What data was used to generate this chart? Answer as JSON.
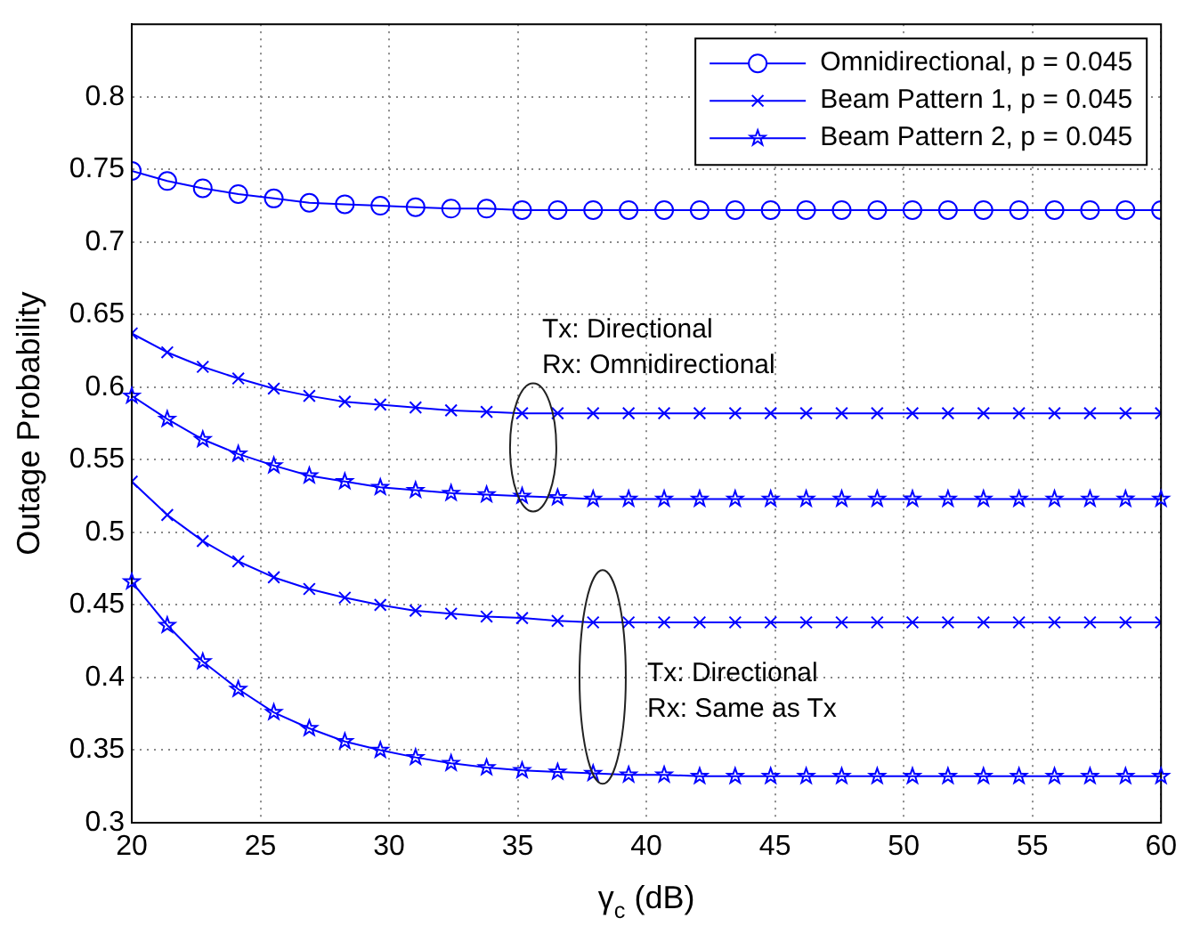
{
  "chart_data": {
    "type": "line",
    "xlabel": "γ$_{c}$ (dB)",
    "ylabel": "Outage Probability",
    "x": [
      20,
      21.38,
      22.76,
      24.14,
      25.52,
      26.9,
      28.28,
      29.66,
      31.03,
      32.41,
      33.79,
      35.17,
      36.55,
      37.93,
      39.31,
      40.69,
      42.07,
      43.45,
      44.83,
      46.21,
      47.59,
      48.97,
      50.34,
      51.72,
      53.1,
      54.48,
      55.86,
      57.24,
      58.62,
      60
    ],
    "series": [
      {
        "name": "Omnidirectional, p = 0.045",
        "color": "#0000ff",
        "marker": "circle",
        "values": [
          0.749,
          0.742,
          0.737,
          0.733,
          0.73,
          0.727,
          0.726,
          0.725,
          0.724,
          0.723,
          0.723,
          0.722,
          0.722,
          0.722,
          0.722,
          0.722,
          0.722,
          0.722,
          0.722,
          0.722,
          0.722,
          0.722,
          0.722,
          0.722,
          0.722,
          0.722,
          0.722,
          0.722,
          0.722,
          0.722
        ]
      },
      {
        "name": "Beam Pattern 1, p = 0.045",
        "color": "#0000ff",
        "marker": "cross",
        "values": [
          0.637,
          0.624,
          0.614,
          0.606,
          0.599,
          0.594,
          0.59,
          0.588,
          0.586,
          0.584,
          0.583,
          0.582,
          0.582,
          0.582,
          0.582,
          0.582,
          0.582,
          0.582,
          0.582,
          0.582,
          0.582,
          0.582,
          0.582,
          0.582,
          0.582,
          0.582,
          0.582,
          0.582,
          0.582,
          0.582
        ]
      },
      {
        "name": "Beam Pattern 2, p = 0.045",
        "color": "#0000ff",
        "marker": "star",
        "values": [
          0.594,
          0.578,
          0.564,
          0.554,
          0.546,
          0.539,
          0.535,
          0.531,
          0.529,
          0.527,
          0.526,
          0.525,
          0.524,
          0.523,
          0.523,
          0.523,
          0.523,
          0.523,
          0.523,
          0.523,
          0.523,
          0.523,
          0.523,
          0.523,
          0.523,
          0.523,
          0.523,
          0.523,
          0.523,
          0.523
        ]
      },
      {
        "color": "#0000ff",
        "marker": "cross",
        "values": [
          0.535,
          0.512,
          0.494,
          0.48,
          0.469,
          0.461,
          0.455,
          0.45,
          0.446,
          0.444,
          0.442,
          0.441,
          0.439,
          0.438,
          0.438,
          0.438,
          0.438,
          0.438,
          0.438,
          0.438,
          0.438,
          0.438,
          0.438,
          0.438,
          0.438,
          0.438,
          0.438,
          0.438,
          0.438,
          0.438
        ]
      },
      {
        "color": "#0000ff",
        "marker": "star",
        "values": [
          0.466,
          0.436,
          0.411,
          0.392,
          0.376,
          0.365,
          0.356,
          0.35,
          0.345,
          0.341,
          0.338,
          0.336,
          0.335,
          0.334,
          0.333,
          0.333,
          0.332,
          0.332,
          0.332,
          0.332,
          0.332,
          0.332,
          0.332,
          0.332,
          0.332,
          0.332,
          0.332,
          0.332,
          0.332,
          0.332
        ]
      }
    ],
    "xlim": [
      20,
      60
    ],
    "xticks": [
      20,
      25,
      30,
      35,
      40,
      45,
      50,
      55,
      60
    ],
    "ylim": [
      0.3,
      0.85
    ],
    "yticks": [
      0.3,
      0.35,
      0.4,
      0.45,
      0.5,
      0.55,
      0.6,
      0.65,
      0.7,
      0.75,
      0.8
    ],
    "grid": true,
    "legend": "top right",
    "line_style": "solid",
    "annotations": [
      "Tx: Directional\nRx: Omnidirectional",
      "Tx: Directional\nRx: Same as Tx"
    ]
  }
}
